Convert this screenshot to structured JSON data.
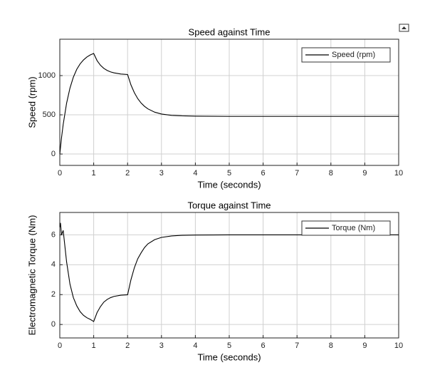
{
  "chart_data": [
    {
      "type": "line",
      "title": "Speed against Time",
      "xlabel": "Time (seconds)",
      "ylabel": "Speed (rpm)",
      "x": [
        0,
        0.05,
        0.1,
        0.2,
        0.3,
        0.4,
        0.5,
        0.6,
        0.7,
        0.8,
        0.9,
        1.0,
        1.1,
        1.2,
        1.3,
        1.4,
        1.5,
        1.6,
        1.8,
        2.0,
        2.1,
        2.2,
        2.3,
        2.4,
        2.5,
        2.6,
        2.8,
        3.0,
        3.3,
        3.6,
        4,
        5,
        6,
        7,
        8,
        9,
        10
      ],
      "series": [
        {
          "name": "Speed (rpm)",
          "color": "#000000",
          "values": [
            0,
            205,
            377,
            647,
            841,
            980,
            1080,
            1150,
            1200,
            1237,
            1264,
            1282,
            1191,
            1132,
            1092,
            1065,
            1047,
            1035,
            1020,
            1014,
            881,
            782,
            706,
            650,
            608,
            576,
            534,
            510,
            493,
            487,
            483,
            480,
            480,
            480,
            480,
            480,
            480
          ]
        }
      ],
      "xlim": [
        0,
        10
      ],
      "ylim": [
        -145,
        1464
      ],
      "xticks": [
        0,
        1,
        2,
        3,
        4,
        5,
        6,
        7,
        8,
        9,
        10
      ],
      "yticks": [
        0,
        500,
        1000
      ],
      "grid": true,
      "legend": "upper right"
    },
    {
      "type": "line",
      "title": "Torque against Time",
      "xlabel": "Time (seconds)",
      "ylabel": "Electromagnetic Torque (Nm)",
      "x": [
        0,
        0.02,
        0.05,
        0.1,
        0.2,
        0.3,
        0.4,
        0.5,
        0.6,
        0.7,
        0.8,
        0.9,
        1.0,
        1.1,
        1.2,
        1.3,
        1.4,
        1.5,
        1.6,
        1.8,
        2.0,
        2.1,
        2.2,
        2.3,
        2.4,
        2.5,
        2.6,
        2.8,
        3.0,
        3.3,
        3.6,
        4,
        5,
        6,
        7,
        8,
        9,
        10
      ],
      "series": [
        {
          "name": "Torque (Nm)",
          "color": "#000000",
          "values": [
            6.5,
            6.8,
            6.0,
            6.3,
            4.2,
            2.7,
            1.8,
            1.25,
            0.86,
            0.61,
            0.45,
            0.34,
            0.2,
            0.8,
            1.2,
            1.5,
            1.68,
            1.8,
            1.88,
            1.96,
            1.99,
            3.0,
            3.8,
            4.4,
            4.8,
            5.15,
            5.4,
            5.68,
            5.83,
            5.93,
            5.97,
            5.99,
            6,
            6,
            6,
            6,
            6,
            6
          ]
        }
      ],
      "xlim": [
        0,
        10
      ],
      "ylim": [
        -0.9,
        7.5
      ],
      "xticks": [
        0,
        1,
        2,
        3,
        4,
        5,
        6,
        7,
        8,
        9,
        10
      ],
      "yticks": [
        0,
        2,
        4,
        6
      ],
      "grid": true,
      "legend": "upper right"
    }
  ]
}
